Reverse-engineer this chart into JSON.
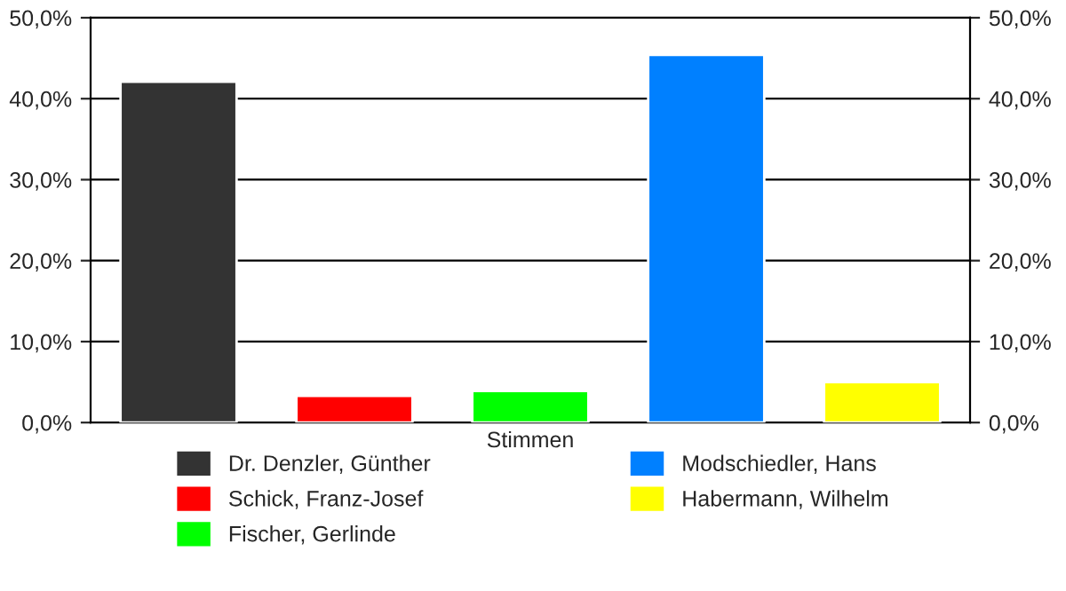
{
  "chart_data": {
    "type": "bar",
    "categories": [
      "Stimmen"
    ],
    "series": [
      {
        "name": "Dr. Denzler, Günther",
        "color": "#333333",
        "values": [
          42.1
        ]
      },
      {
        "name": "Schick, Franz-Josef",
        "color": "#ff0000",
        "values": [
          3.3
        ]
      },
      {
        "name": "Fischer, Gerlinde",
        "color": "#00ff00",
        "values": [
          3.9
        ]
      },
      {
        "name": "Modschiedler, Hans",
        "color": "#0080ff",
        "values": [
          45.4
        ]
      },
      {
        "name": "Habermann, Wilhelm",
        "color": "#ffff00",
        "values": [
          5.0
        ]
      }
    ],
    "ylim": [
      0,
      50
    ],
    "yticks": [
      {
        "value": 0,
        "label": "0,0%"
      },
      {
        "value": 10,
        "label": "10,0%"
      },
      {
        "value": 20,
        "label": "20,0%"
      },
      {
        "value": 30,
        "label": "30,0%"
      },
      {
        "value": 40,
        "label": "40,0%"
      },
      {
        "value": 50,
        "label": "50,0%"
      }
    ],
    "grid": "y",
    "legend": "bottom"
  }
}
